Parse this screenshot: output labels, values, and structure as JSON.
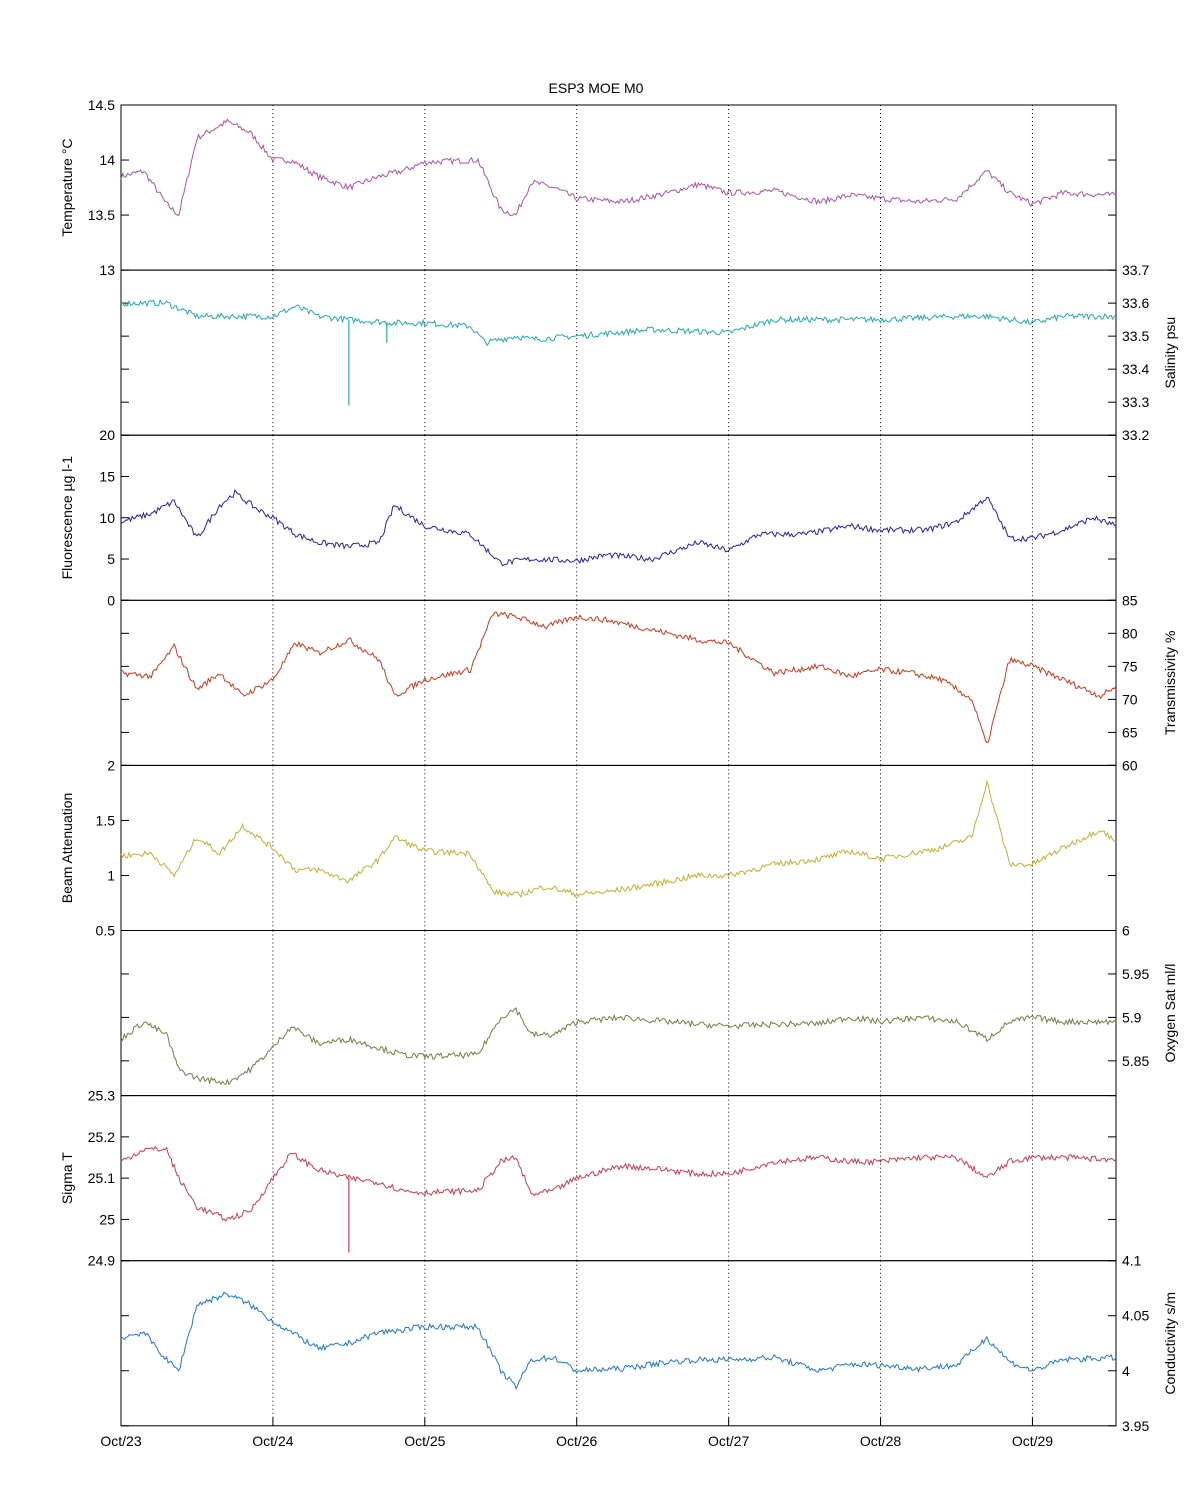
{
  "figure": {
    "title": "ESP3 MOE   M0",
    "x_tick_labels": [
      "Oct/23",
      "Oct/24",
      "Oct/25",
      "Oct/26",
      "Oct/27",
      "Oct/28",
      "Oct/29"
    ]
  },
  "chart_data": [
    {
      "type": "line",
      "panel": 1,
      "ylabel": "Temperature °C",
      "axis_side": "left",
      "ylim": [
        13,
        14.5
      ],
      "yticks": [
        13,
        13.5,
        14,
        14.5
      ],
      "color": "#a855a8",
      "x_unit": "day of October",
      "xlim": [
        23,
        29.55
      ],
      "grid_x": "dotted at day boundaries",
      "x": [
        23.0,
        23.15,
        23.3,
        23.38,
        23.5,
        23.7,
        23.85,
        24.0,
        24.12,
        24.3,
        24.5,
        24.7,
        24.85,
        25.0,
        25.35,
        25.5,
        25.6,
        25.7,
        25.85,
        26.0,
        26.3,
        26.6,
        26.8,
        27.0,
        27.3,
        27.6,
        27.8,
        28.0,
        28.25,
        28.5,
        28.7,
        28.85,
        29.0,
        29.2,
        29.55
      ],
      "y": [
        13.85,
        13.9,
        13.6,
        13.5,
        14.2,
        14.35,
        14.25,
        14.0,
        14.0,
        13.85,
        13.75,
        13.85,
        13.9,
        13.98,
        14.0,
        13.55,
        13.5,
        13.8,
        13.75,
        13.65,
        13.62,
        13.7,
        13.78,
        13.7,
        13.72,
        13.62,
        13.68,
        13.65,
        13.62,
        13.65,
        13.9,
        13.7,
        13.6,
        13.7,
        13.68
      ]
    },
    {
      "type": "line",
      "panel": 2,
      "ylabel": "Salinity psu",
      "axis_side": "right",
      "ylim": [
        33.2,
        33.7
      ],
      "yticks": [
        33.2,
        33.3,
        33.4,
        33.5,
        33.6,
        33.7
      ],
      "color": "#22a9b2",
      "x": [
        23.0,
        23.3,
        23.5,
        24.0,
        24.15,
        24.3,
        24.5,
        24.8,
        25.0,
        25.3,
        25.4,
        25.6,
        25.7,
        26.0,
        26.5,
        27.0,
        27.3,
        27.6,
        28.0,
        28.5,
        28.7,
        29.0,
        29.2,
        29.55
      ],
      "y": [
        33.6,
        33.6,
        33.56,
        33.56,
        33.59,
        33.56,
        33.55,
        33.54,
        33.54,
        33.53,
        33.48,
        33.5,
        33.49,
        33.5,
        33.52,
        33.51,
        33.55,
        33.55,
        33.55,
        33.56,
        33.56,
        33.54,
        33.56,
        33.56
      ],
      "spikes": [
        {
          "x": 24.5,
          "y": 33.29
        },
        {
          "x": 24.75,
          "y": 33.48
        }
      ]
    },
    {
      "type": "line",
      "panel": 3,
      "ylabel": "Fluorescence µg l-1",
      "axis_side": "left",
      "ylim": [
        0,
        20
      ],
      "yticks": [
        0,
        5,
        10,
        15,
        20
      ],
      "color": "#2b1fa8",
      "x": [
        23.0,
        23.2,
        23.35,
        23.5,
        23.65,
        23.75,
        23.9,
        24.0,
        24.15,
        24.3,
        24.5,
        24.7,
        24.8,
        25.0,
        25.3,
        25.5,
        25.7,
        26.0,
        26.2,
        26.5,
        26.8,
        27.0,
        27.2,
        27.5,
        27.8,
        28.0,
        28.3,
        28.5,
        28.7,
        28.85,
        29.0,
        29.2,
        29.4,
        29.55
      ],
      "y": [
        9.5,
        10.5,
        12.0,
        7.5,
        11.5,
        13.0,
        11.0,
        10.0,
        8.0,
        7.0,
        6.5,
        7.0,
        11.5,
        9.0,
        8.0,
        4.5,
        5.0,
        4.8,
        5.5,
        5.0,
        7.0,
        6.0,
        8.0,
        8.0,
        9.0,
        8.5,
        8.5,
        9.5,
        12.5,
        7.5,
        7.5,
        8.5,
        10.0,
        9.0
      ]
    },
    {
      "type": "line",
      "panel": 4,
      "ylabel": "Transmissivity %",
      "axis_side": "right",
      "ylim": [
        60,
        85
      ],
      "yticks": [
        60,
        65,
        70,
        75,
        80,
        85
      ],
      "color": "#cc3a1c",
      "x": [
        23.0,
        23.2,
        23.35,
        23.5,
        23.65,
        23.8,
        24.0,
        24.15,
        24.3,
        24.5,
        24.7,
        24.8,
        25.0,
        25.3,
        25.45,
        25.6,
        25.8,
        26.0,
        26.2,
        26.5,
        26.8,
        27.0,
        27.3,
        27.6,
        27.8,
        28.0,
        28.2,
        28.4,
        28.6,
        28.7,
        28.85,
        29.0,
        29.2,
        29.45,
        29.55
      ],
      "y": [
        74.0,
        73.5,
        78.0,
        71.5,
        74.0,
        70.5,
        73.0,
        78.5,
        77.0,
        79.0,
        76.0,
        70.5,
        73.0,
        74.5,
        83.0,
        82.5,
        81.0,
        82.5,
        82.0,
        80.5,
        79.0,
        78.5,
        74.0,
        75.0,
        73.5,
        74.5,
        74.0,
        73.0,
        70.0,
        63.0,
        76.0,
        75.0,
        73.0,
        70.5,
        72.0
      ]
    },
    {
      "type": "line",
      "panel": 5,
      "ylabel": "Beam Attenuation",
      "axis_side": "left",
      "ylim": [
        0.5,
        2.0
      ],
      "yticks": [
        0.5,
        1.0,
        1.5,
        2.0
      ],
      "color": "#c4b032",
      "x": [
        23.0,
        23.2,
        23.35,
        23.5,
        23.65,
        23.8,
        24.0,
        24.15,
        24.3,
        24.5,
        24.7,
        24.8,
        25.0,
        25.3,
        25.45,
        25.6,
        25.8,
        26.0,
        26.2,
        26.5,
        26.8,
        27.0,
        27.3,
        27.6,
        27.8,
        28.0,
        28.2,
        28.4,
        28.6,
        28.7,
        28.85,
        29.0,
        29.2,
        29.45,
        29.55
      ],
      "y": [
        1.18,
        1.2,
        1.0,
        1.35,
        1.2,
        1.45,
        1.25,
        1.05,
        1.05,
        0.95,
        1.15,
        1.35,
        1.22,
        1.2,
        0.85,
        0.82,
        0.9,
        0.83,
        0.85,
        0.92,
        1.0,
        1.0,
        1.1,
        1.15,
        1.22,
        1.15,
        1.2,
        1.25,
        1.35,
        1.85,
        1.1,
        1.1,
        1.25,
        1.42,
        1.3
      ]
    },
    {
      "type": "line",
      "panel": 6,
      "ylabel": "Oxygen Sat ml/l",
      "axis_side": "right",
      "ylim": [
        5.81,
        6.0
      ],
      "yticks": [
        5.85,
        5.9,
        5.95,
        6.0
      ],
      "color": "#7a7a45",
      "x": [
        23.0,
        23.15,
        23.3,
        23.38,
        23.5,
        23.7,
        23.85,
        24.0,
        24.12,
        24.3,
        24.5,
        24.7,
        24.85,
        25.0,
        25.35,
        25.5,
        25.6,
        25.7,
        25.85,
        26.0,
        26.3,
        26.6,
        26.8,
        27.0,
        27.3,
        27.6,
        27.8,
        28.0,
        28.25,
        28.5,
        28.7,
        28.85,
        29.0,
        29.2,
        29.55
      ],
      "y": [
        5.875,
        5.895,
        5.88,
        5.84,
        5.83,
        5.825,
        5.84,
        5.865,
        5.89,
        5.87,
        5.875,
        5.865,
        5.857,
        5.855,
        5.857,
        5.9,
        5.91,
        5.88,
        5.88,
        5.895,
        5.9,
        5.895,
        5.892,
        5.89,
        5.892,
        5.893,
        5.9,
        5.895,
        5.9,
        5.895,
        5.875,
        5.895,
        5.9,
        5.895,
        5.895
      ]
    },
    {
      "type": "line",
      "panel": 7,
      "ylabel": "Sigma T",
      "axis_side": "left",
      "ylim": [
        24.9,
        25.3
      ],
      "yticks": [
        24.9,
        25.0,
        25.1,
        25.2,
        25.3
      ],
      "color": "#cc3a50",
      "x": [
        23.0,
        23.15,
        23.3,
        23.38,
        23.5,
        23.7,
        23.85,
        24.0,
        24.12,
        24.3,
        24.5,
        24.7,
        24.85,
        25.0,
        25.35,
        25.5,
        25.6,
        25.7,
        25.85,
        26.0,
        26.3,
        26.6,
        26.8,
        27.0,
        27.3,
        27.6,
        27.8,
        28.0,
        28.25,
        28.5,
        28.7,
        28.85,
        29.0,
        29.2,
        29.55
      ],
      "y": [
        25.14,
        25.17,
        25.17,
        25.1,
        25.03,
        25.0,
        25.02,
        25.1,
        25.16,
        25.12,
        25.1,
        25.09,
        25.07,
        25.065,
        25.07,
        25.14,
        25.15,
        25.06,
        25.07,
        25.1,
        25.13,
        25.12,
        25.11,
        25.11,
        25.14,
        25.15,
        25.14,
        25.14,
        25.15,
        25.15,
        25.1,
        25.14,
        25.15,
        25.15,
        25.145
      ],
      "spikes": [
        {
          "x": 24.5,
          "y": 24.92
        }
      ]
    },
    {
      "type": "line",
      "panel": 8,
      "ylabel": "Conductivity s/m",
      "axis_side": "right",
      "ylim": [
        3.95,
        4.1
      ],
      "yticks": [
        3.95,
        4.0,
        4.05,
        4.1
      ],
      "color": "#1f78c8",
      "x": [
        23.0,
        23.15,
        23.3,
        23.38,
        23.5,
        23.7,
        23.85,
        24.0,
        24.12,
        24.3,
        24.5,
        24.7,
        24.85,
        25.0,
        25.35,
        25.5,
        25.6,
        25.7,
        25.85,
        26.0,
        26.3,
        26.6,
        26.8,
        27.0,
        27.3,
        27.6,
        27.8,
        28.0,
        28.25,
        28.5,
        28.7,
        28.85,
        29.0,
        29.2,
        29.55
      ],
      "y": [
        4.03,
        4.035,
        4.01,
        4.0,
        4.06,
        4.07,
        4.06,
        4.045,
        4.035,
        4.02,
        4.025,
        4.035,
        4.037,
        4.04,
        4.04,
        4.0,
        3.985,
        4.01,
        4.012,
        4.0,
        4.002,
        4.008,
        4.01,
        4.01,
        4.012,
        4.0,
        4.006,
        4.005,
        4.002,
        4.005,
        4.03,
        4.008,
        4.0,
        4.01,
        4.012
      ]
    }
  ]
}
